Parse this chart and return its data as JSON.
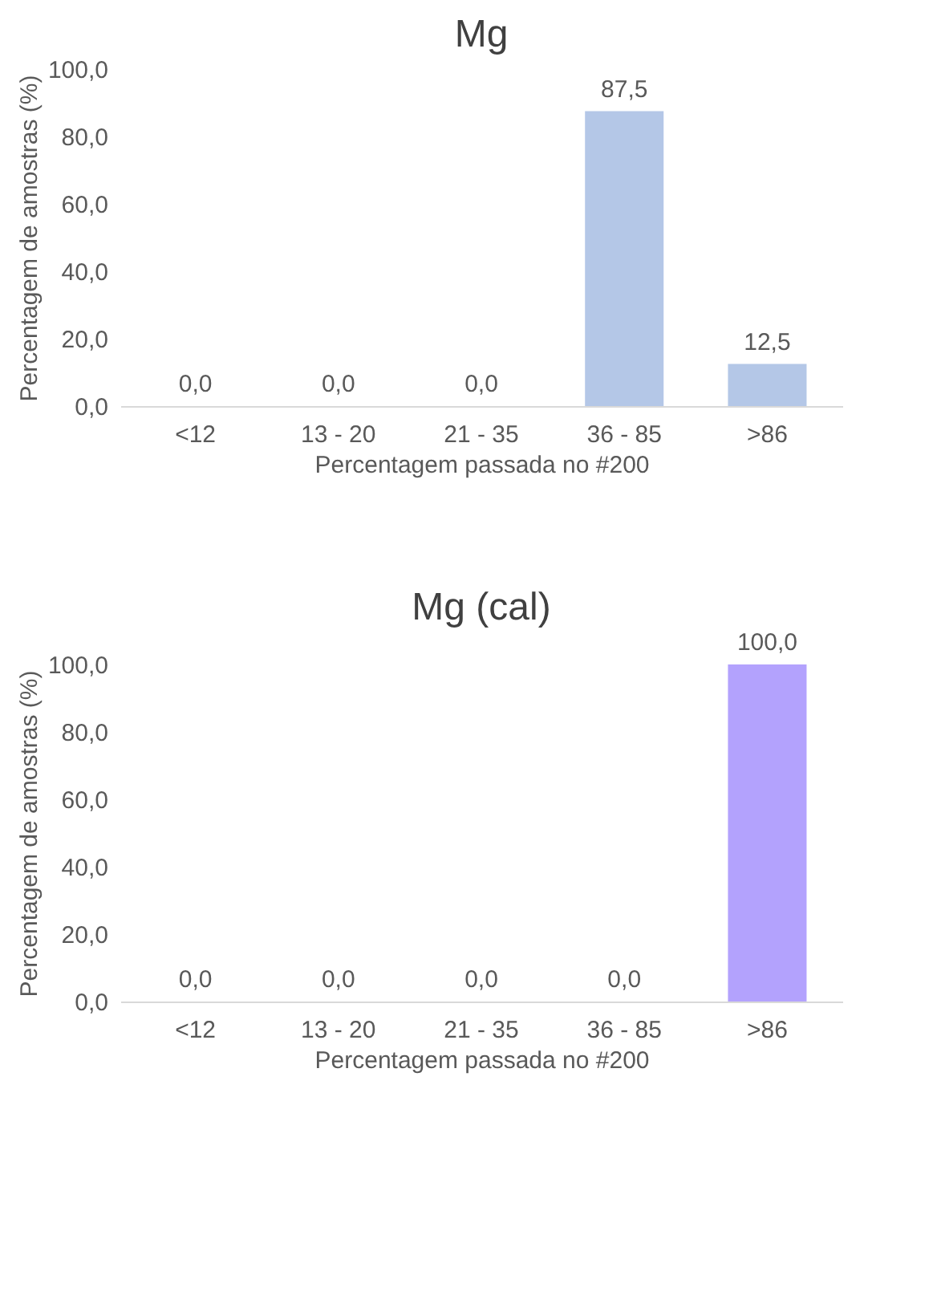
{
  "chart_data": [
    {
      "type": "bar",
      "title": "Mg",
      "xlabel": "Percentagem passada no #200",
      "ylabel": "Percentagem de amostras (%)",
      "categories": [
        "<12",
        "13 - 20",
        "21 - 35",
        "36 - 85",
        ">86"
      ],
      "values": [
        0.0,
        0.0,
        0.0,
        87.5,
        12.5
      ],
      "color": "#b4c7e7",
      "value_labels": [
        "0,0",
        "0,0",
        "0,0",
        "87,5",
        "12,5"
      ],
      "ylim": [
        0,
        100
      ],
      "yticks": [
        {
          "value": 0,
          "label": "0,0"
        },
        {
          "value": 20,
          "label": "20,0"
        },
        {
          "value": 40,
          "label": "40,0"
        },
        {
          "value": 60,
          "label": "60,0"
        },
        {
          "value": 80,
          "label": "80,0"
        },
        {
          "value": 100,
          "label": "100,0"
        }
      ],
      "grid": false
    },
    {
      "type": "bar",
      "title": "Mg (cal)",
      "xlabel": "Percentagem passada no #200",
      "ylabel": "Percentagem de amostras (%)",
      "categories": [
        "<12",
        "13 - 20",
        "21 - 35",
        "36 - 85",
        ">86"
      ],
      "values": [
        0.0,
        0.0,
        0.0,
        0.0,
        100.0
      ],
      "color": "#b3a2fd",
      "value_labels": [
        "0,0",
        "0,0",
        "0,0",
        "0,0",
        "100,0"
      ],
      "ylim": [
        0,
        100
      ],
      "yticks": [
        {
          "value": 0,
          "label": "0,0"
        },
        {
          "value": 20,
          "label": "20,0"
        },
        {
          "value": 40,
          "label": "40,0"
        },
        {
          "value": 60,
          "label": "60,0"
        },
        {
          "value": 80,
          "label": "80,0"
        },
        {
          "value": 100,
          "label": "100,0"
        }
      ],
      "grid": false
    }
  ]
}
